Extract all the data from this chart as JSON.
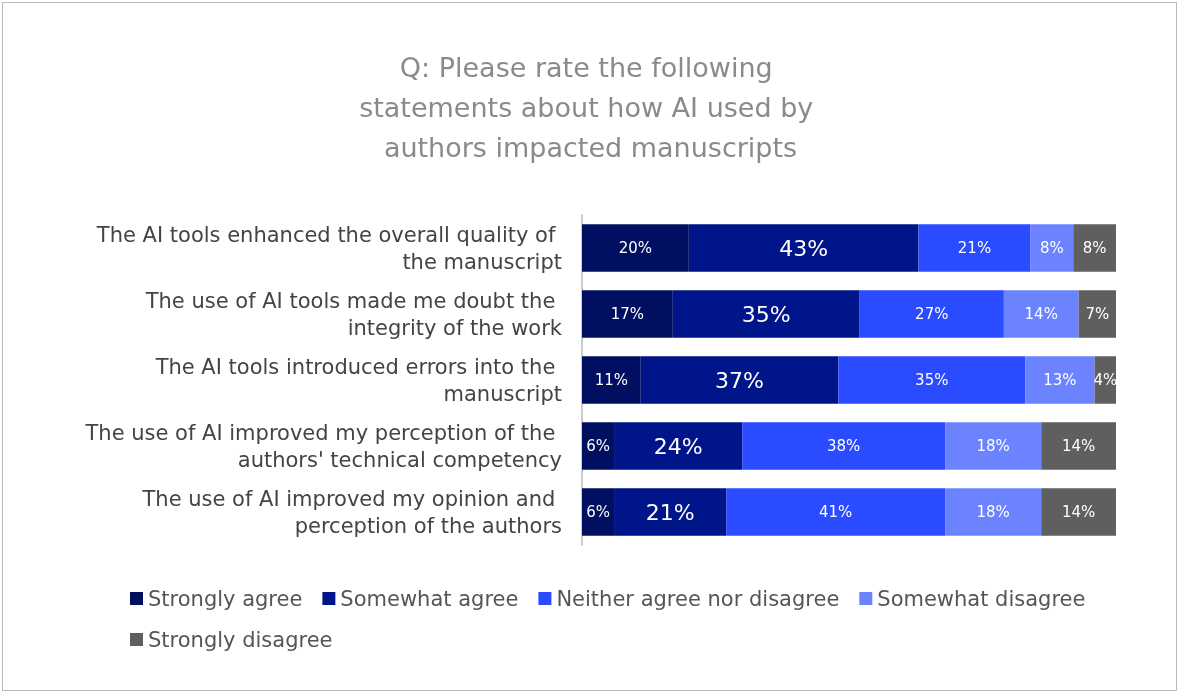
{
  "chart_data": {
    "type": "bar",
    "orientation": "horizontal",
    "stacked": true,
    "title": "Q: Please rate the following statements about how AI used by authors impacted manuscripts",
    "categories": [
      "The AI tools enhanced the overall quality of the manuscript",
      "The use of AI tools made me doubt the integrity of the work",
      "The AI tools introduced errors into the manuscript",
      "The use of AI improved my perception of the authors' technical competency",
      "The use of AI improved my opinion and perception of the authors"
    ],
    "series": [
      {
        "name": "Strongly agree",
        "color": "#000f5f",
        "values": [
          20,
          17,
          11,
          6,
          6
        ],
        "value_labels": [
          "20%",
          "17%",
          "11%",
          "6%",
          "6%"
        ]
      },
      {
        "name": "Somewhat agree",
        "color": "#001589",
        "values": [
          43,
          35,
          37,
          24,
          21
        ],
        "value_labels": [
          "43%",
          "35%",
          "37%",
          "24%",
          "21%"
        ]
      },
      {
        "name": "Neither agree nor disagree",
        "color": "#2a4bff",
        "values": [
          21,
          27,
          35,
          38,
          41
        ],
        "value_labels": [
          "21%",
          "27%",
          "35%",
          "38%",
          "41%"
        ]
      },
      {
        "name": "Somewhat disagree",
        "color": "#6c83ff",
        "values": [
          8,
          14,
          13,
          18,
          18
        ],
        "value_labels": [
          "8%",
          "14%",
          "13%",
          "18%",
          "18%"
        ]
      },
      {
        "name": "Strongly disagree",
        "color": "#5f5f5f",
        "values": [
          8,
          7,
          4,
          14,
          14
        ],
        "value_labels": [
          "8%",
          "7%",
          "4%",
          "14%",
          "14%"
        ]
      }
    ],
    "xlim": [
      0,
      100
    ],
    "tick_labels": "y",
    "grid": false,
    "legend": "bottom"
  }
}
